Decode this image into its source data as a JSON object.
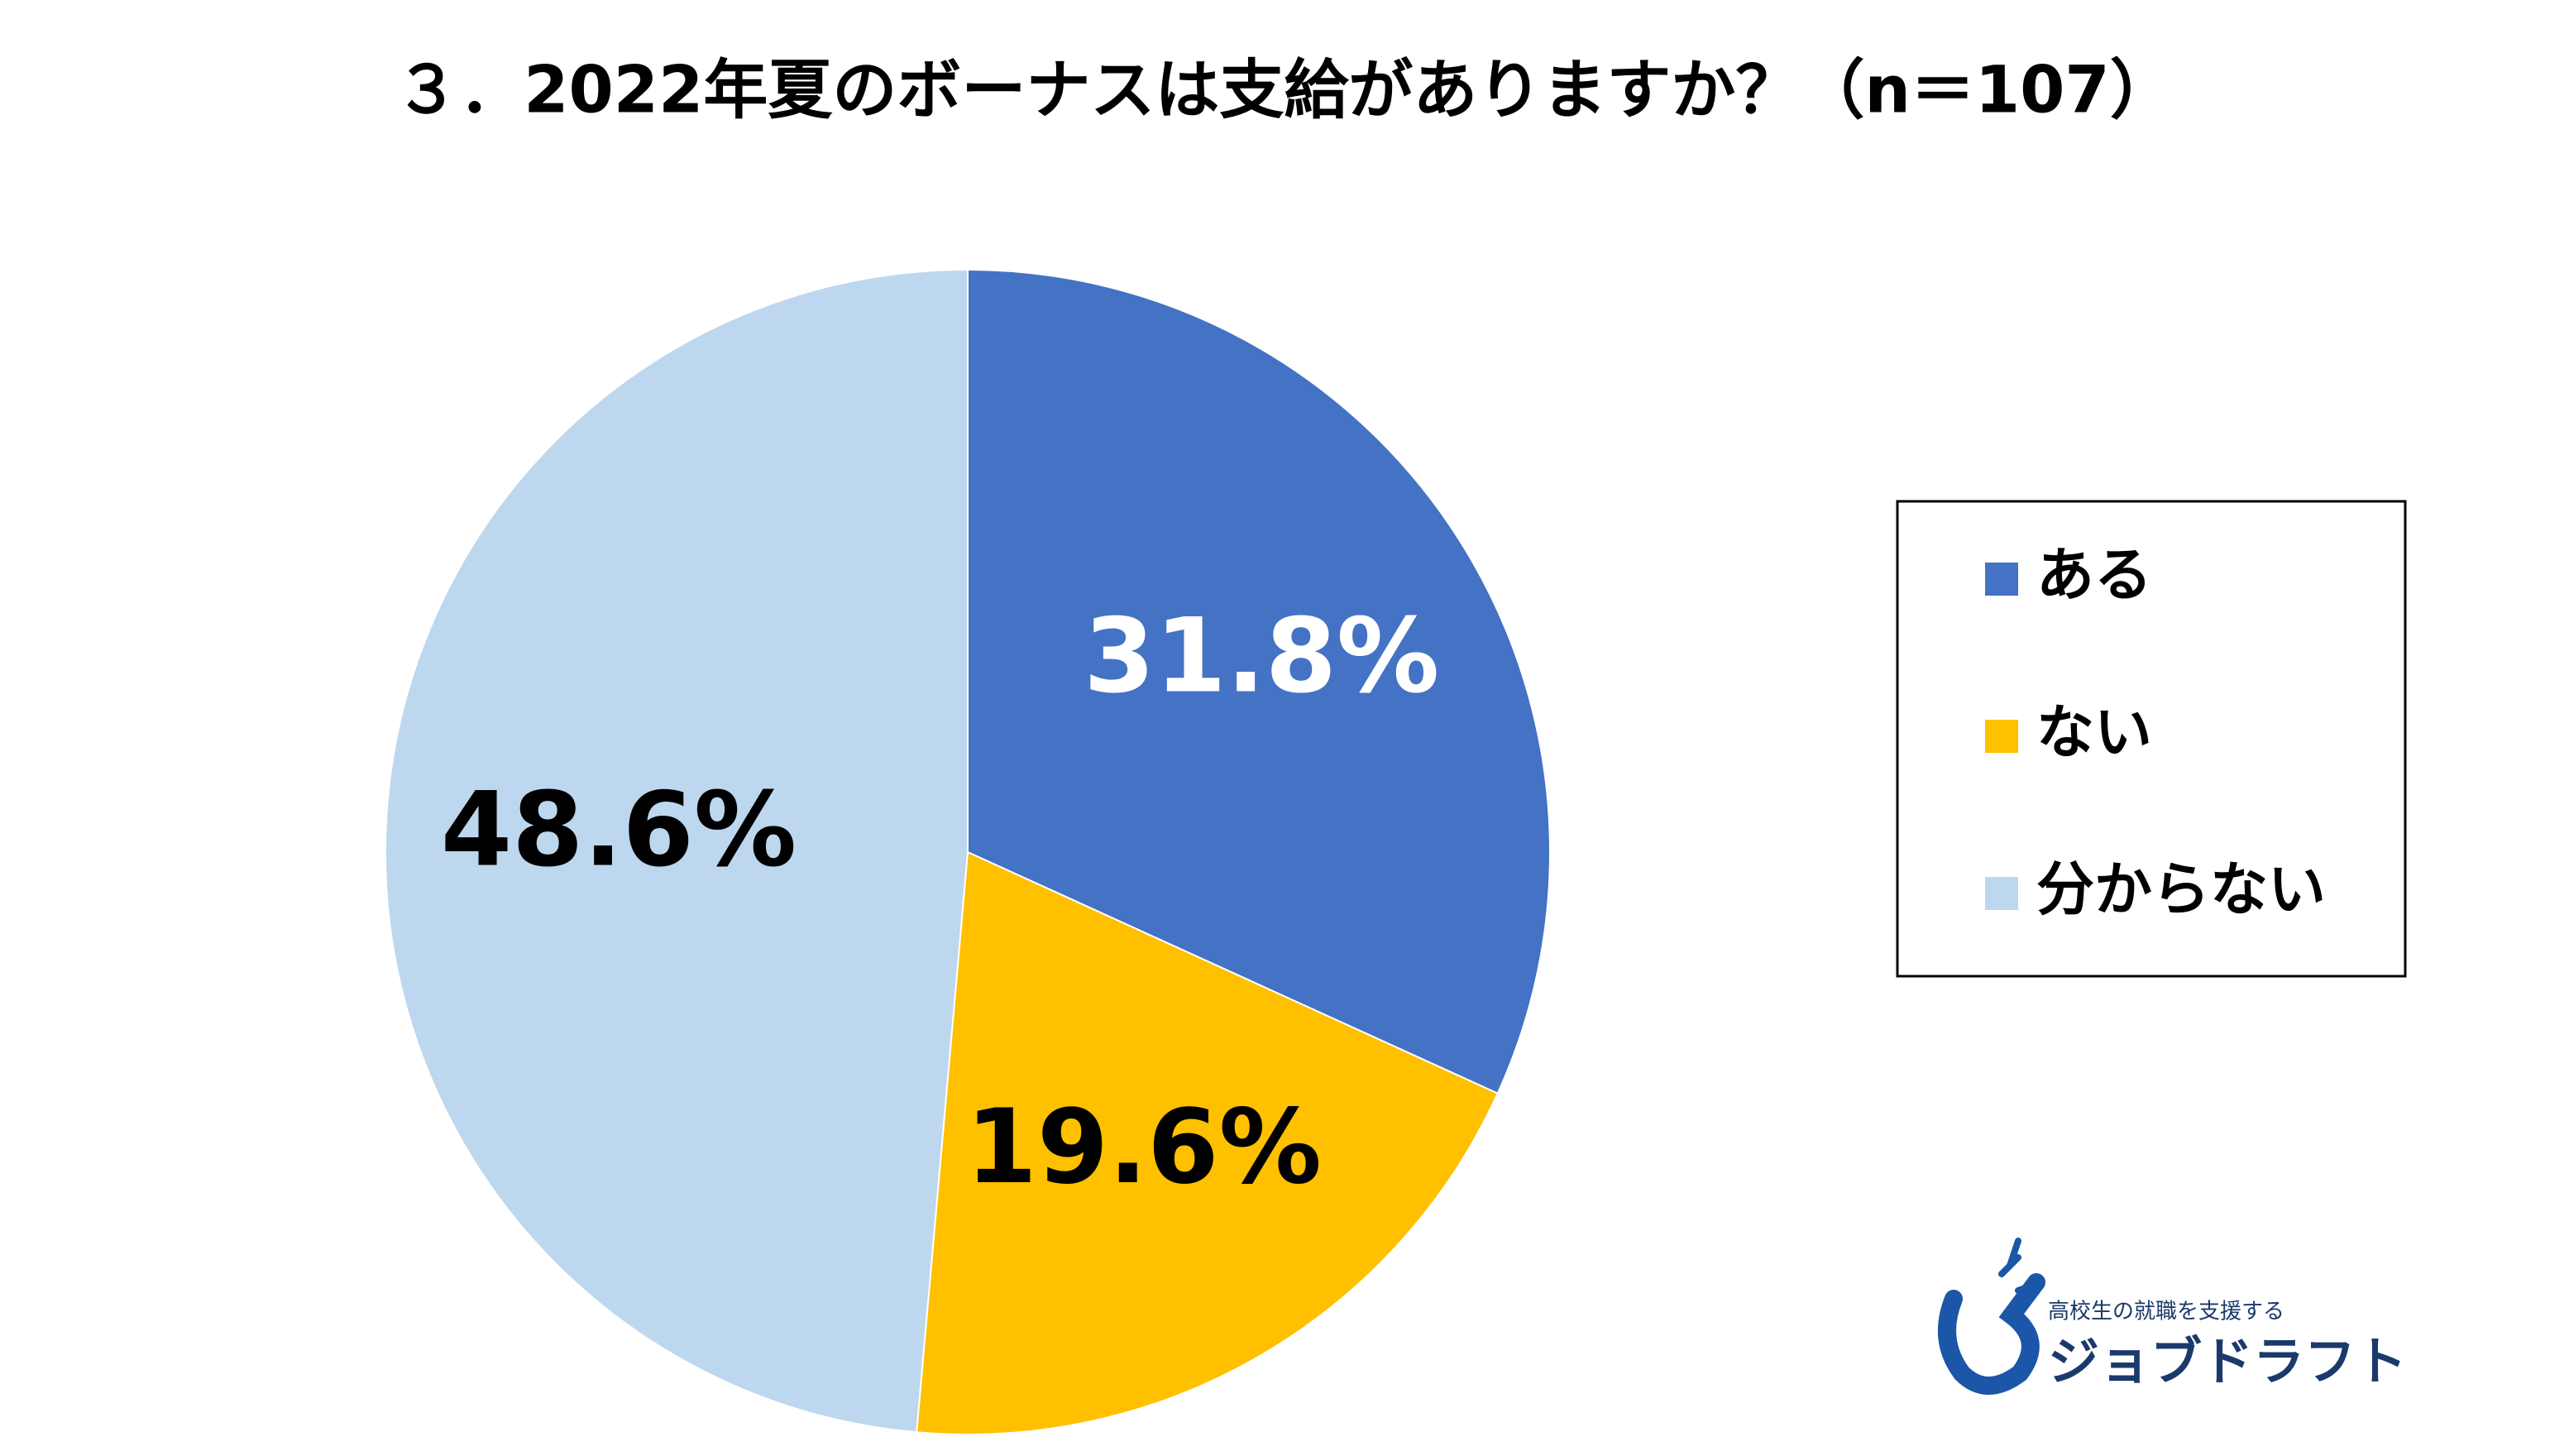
{
  "chart_data": {
    "type": "pie",
    "title": "３．2022年夏のボーナスは支給がありますか？（n＝107）",
    "categories": [
      "ある",
      "ない",
      "分からない"
    ],
    "values": [
      31.8,
      19.6,
      48.6
    ],
    "value_labels": [
      "31.8%",
      "19.6%",
      "48.6%"
    ],
    "colors": [
      "#4472c4",
      "#ffc000",
      "#bdd7ee"
    ],
    "label_colors": [
      "#ffffff",
      "#000000",
      "#000000"
    ],
    "legend": "right"
  },
  "logo": {
    "tagline": "高校生の就職を支援する",
    "name": "ジョブドラフト"
  }
}
